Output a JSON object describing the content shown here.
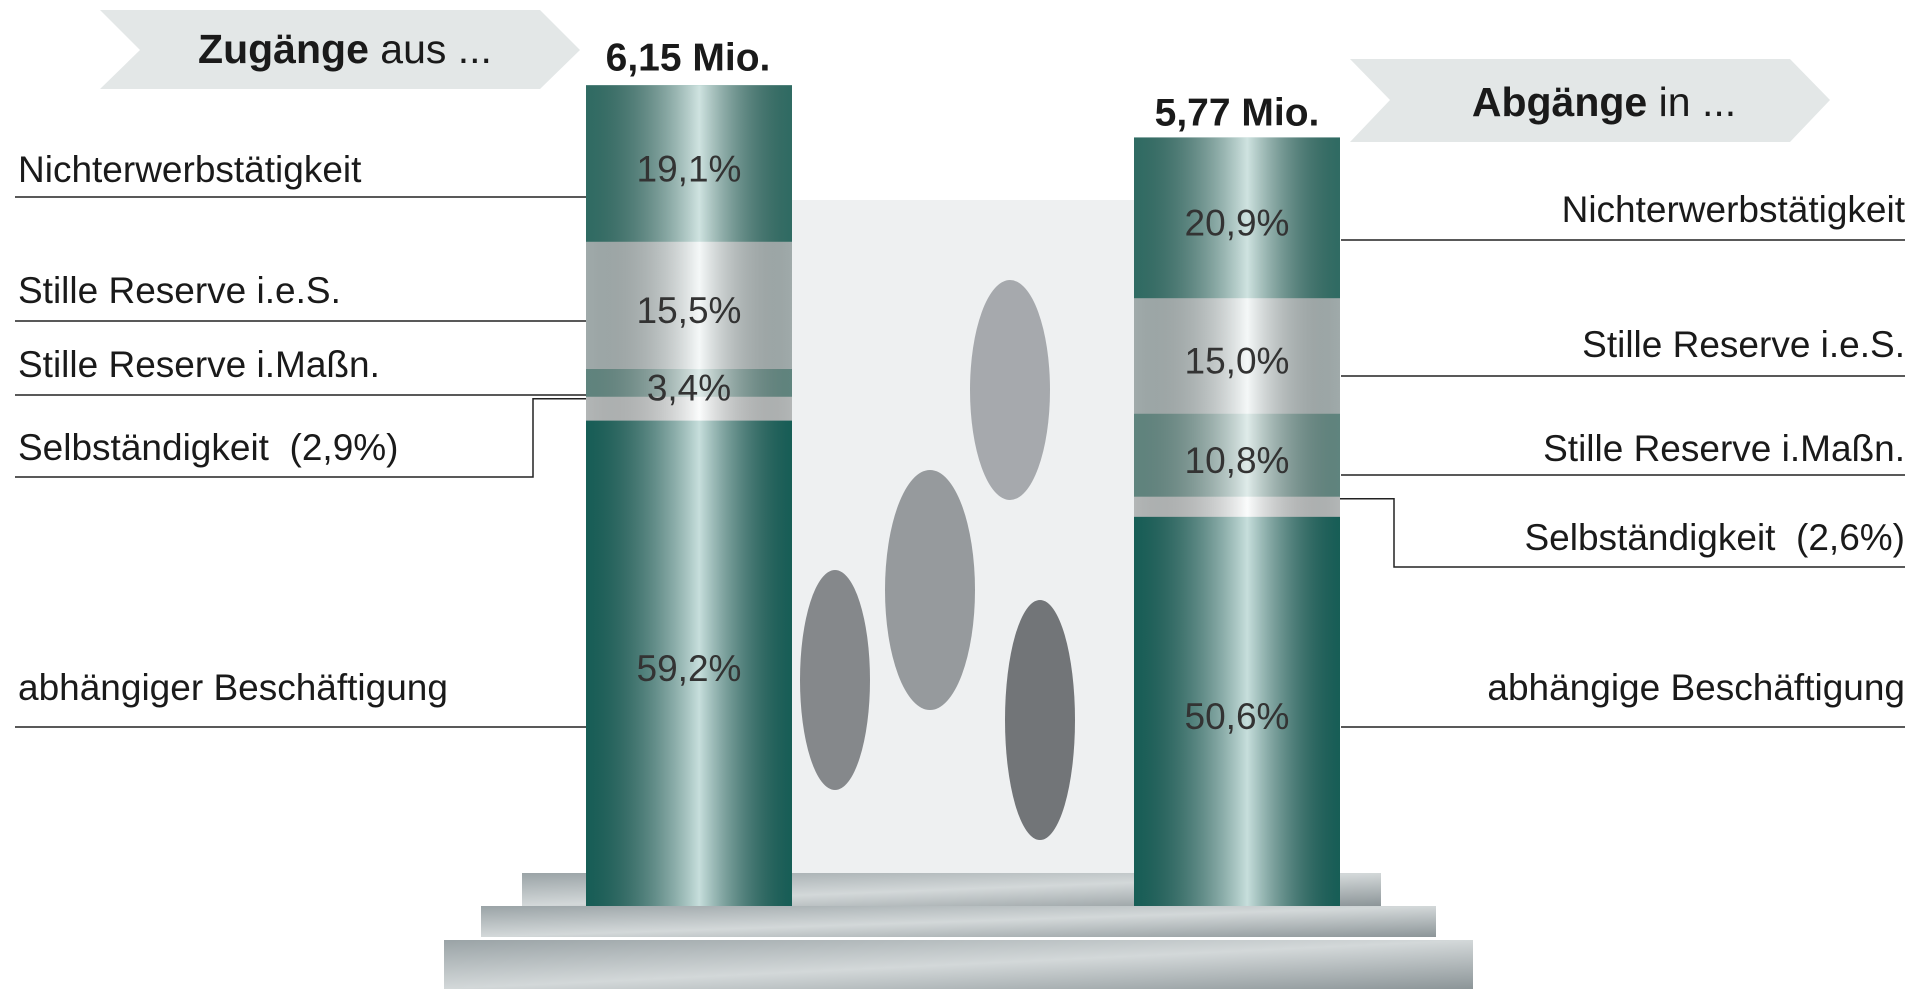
{
  "chart_data": {
    "type": "stacked_column",
    "columns": [
      {
        "heading_bold": "Zugänge",
        "heading_rest": "aus ...",
        "total": 6.15,
        "total_label": "6,15 Mio.",
        "categories": [
          "Nichterwerbstätigkeit",
          "Stille Reserve i.e.S.",
          "Stille Reserve i.Maßn.",
          "Selbständigkeit",
          "abhängiger Beschäftigung"
        ],
        "values": [
          19.1,
          15.5,
          3.4,
          2.9,
          59.2
        ],
        "value_labels": [
          "19,1%",
          "15,5%",
          "3,4%",
          "(2,9%)",
          "59,2%"
        ],
        "colors": [
          "#3f8f84",
          "#d5e3e3",
          "#7fb0a8",
          "#eef3f3",
          "#1e7d73"
        ]
      },
      {
        "heading_bold": "Abgänge",
        "heading_rest": "in ...",
        "total": 5.77,
        "total_label": "5,77 Mio.",
        "categories": [
          "Nichterwerbstätigkeit",
          "Stille Reserve i.e.S.",
          "Stille Reserve i.Maßn.",
          "Selbständigkeit",
          "abhängige Beschäftigung"
        ],
        "values": [
          20.9,
          15.0,
          10.8,
          2.6,
          50.6
        ],
        "value_labels": [
          "20,9%",
          "15,0%",
          "10,8%",
          "(2,6%)",
          "50,6%"
        ],
        "colors": [
          "#3f8f84",
          "#d5e3e3",
          "#7fb0a8",
          "#eef3f3",
          "#1e7d73"
        ]
      }
    ]
  }
}
